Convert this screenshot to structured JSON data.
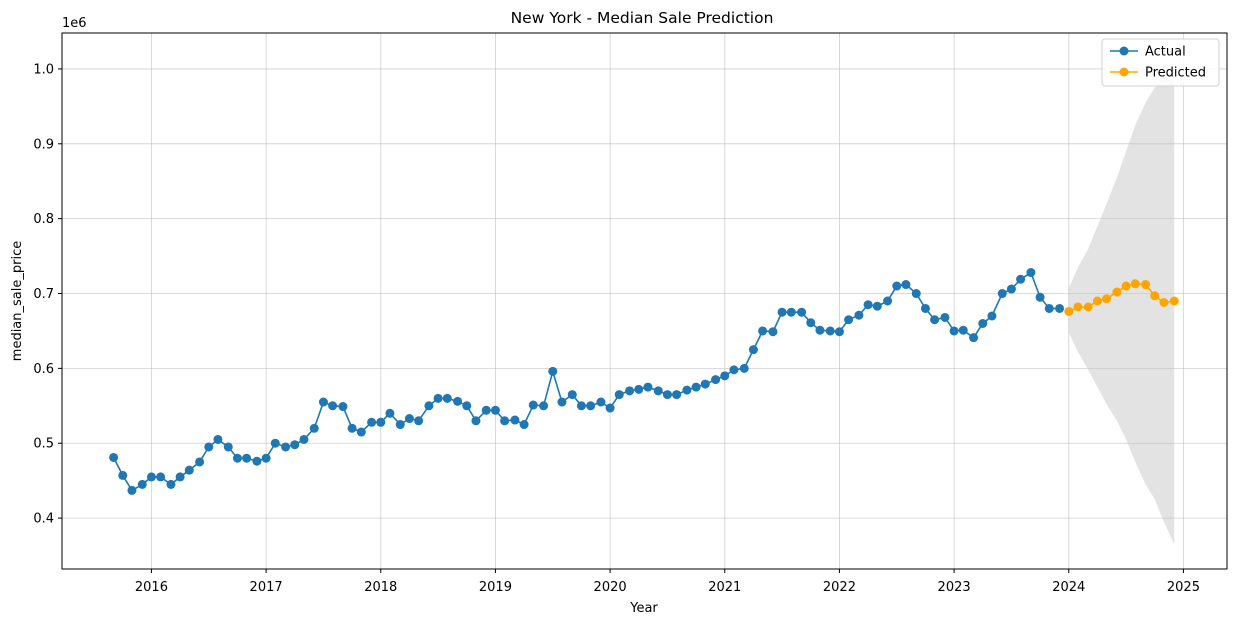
{
  "chart_data": {
    "type": "line",
    "title": "New York - Median Sale Prediction",
    "xlabel": "Year",
    "ylabel": "median_sale_price",
    "y_offset_label": "1e6",
    "xlim": [
      2015.22,
      2025.38
    ],
    "ylim": [
      0.332,
      1.048
    ],
    "x_ticks": [
      2016,
      2017,
      2018,
      2019,
      2020,
      2021,
      2022,
      2023,
      2024,
      2025
    ],
    "y_ticks": [
      0.4,
      0.5,
      0.6,
      0.7,
      0.8,
      0.9,
      1.0
    ],
    "y_tick_labels": [
      "0.4",
      "0.5",
      "0.6",
      "0.7",
      "0.8",
      "0.9",
      "1.0"
    ],
    "grid": true,
    "legend_position": "top-right",
    "series": [
      {
        "name": "Actual",
        "color": "#1f77b4",
        "marker": "circle",
        "points": [
          [
            2015.67,
            0.481
          ],
          [
            2015.75,
            0.457
          ],
          [
            2015.83,
            0.437
          ],
          [
            2015.92,
            0.445
          ],
          [
            2016.0,
            0.455
          ],
          [
            2016.08,
            0.455
          ],
          [
            2016.17,
            0.445
          ],
          [
            2016.25,
            0.455
          ],
          [
            2016.33,
            0.464
          ],
          [
            2016.42,
            0.475
          ],
          [
            2016.5,
            0.495
          ],
          [
            2016.58,
            0.505
          ],
          [
            2016.67,
            0.495
          ],
          [
            2016.75,
            0.48
          ],
          [
            2016.83,
            0.48
          ],
          [
            2016.92,
            0.476
          ],
          [
            2017.0,
            0.48
          ],
          [
            2017.08,
            0.5
          ],
          [
            2017.17,
            0.495
          ],
          [
            2017.25,
            0.498
          ],
          [
            2017.33,
            0.505
          ],
          [
            2017.42,
            0.52
          ],
          [
            2017.5,
            0.555
          ],
          [
            2017.58,
            0.55
          ],
          [
            2017.67,
            0.549
          ],
          [
            2017.75,
            0.52
          ],
          [
            2017.83,
            0.515
          ],
          [
            2017.92,
            0.528
          ],
          [
            2018.0,
            0.528
          ],
          [
            2018.08,
            0.54
          ],
          [
            2018.17,
            0.525
          ],
          [
            2018.25,
            0.533
          ],
          [
            2018.33,
            0.53
          ],
          [
            2018.42,
            0.55
          ],
          [
            2018.5,
            0.56
          ],
          [
            2018.58,
            0.56
          ],
          [
            2018.67,
            0.556
          ],
          [
            2018.75,
            0.55
          ],
          [
            2018.83,
            0.53
          ],
          [
            2018.92,
            0.544
          ],
          [
            2019.0,
            0.544
          ],
          [
            2019.08,
            0.53
          ],
          [
            2019.17,
            0.531
          ],
          [
            2019.25,
            0.525
          ],
          [
            2019.33,
            0.551
          ],
          [
            2019.42,
            0.55
          ],
          [
            2019.5,
            0.596
          ],
          [
            2019.58,
            0.555
          ],
          [
            2019.67,
            0.565
          ],
          [
            2019.75,
            0.55
          ],
          [
            2019.83,
            0.55
          ],
          [
            2019.92,
            0.555
          ],
          [
            2020.0,
            0.547
          ],
          [
            2020.08,
            0.565
          ],
          [
            2020.17,
            0.57
          ],
          [
            2020.25,
            0.572
          ],
          [
            2020.33,
            0.575
          ],
          [
            2020.42,
            0.57
          ],
          [
            2020.5,
            0.565
          ],
          [
            2020.58,
            0.565
          ],
          [
            2020.67,
            0.571
          ],
          [
            2020.75,
            0.575
          ],
          [
            2020.83,
            0.579
          ],
          [
            2020.92,
            0.585
          ],
          [
            2021.0,
            0.59
          ],
          [
            2021.08,
            0.598
          ],
          [
            2021.17,
            0.6
          ],
          [
            2021.25,
            0.625
          ],
          [
            2021.33,
            0.65
          ],
          [
            2021.42,
            0.649
          ],
          [
            2021.5,
            0.675
          ],
          [
            2021.58,
            0.675
          ],
          [
            2021.67,
            0.675
          ],
          [
            2021.75,
            0.661
          ],
          [
            2021.83,
            0.651
          ],
          [
            2021.92,
            0.65
          ],
          [
            2022.0,
            0.649
          ],
          [
            2022.08,
            0.665
          ],
          [
            2022.17,
            0.671
          ],
          [
            2022.25,
            0.685
          ],
          [
            2022.33,
            0.683
          ],
          [
            2022.42,
            0.69
          ],
          [
            2022.5,
            0.71
          ],
          [
            2022.58,
            0.712
          ],
          [
            2022.67,
            0.7
          ],
          [
            2022.75,
            0.68
          ],
          [
            2022.83,
            0.665
          ],
          [
            2022.92,
            0.668
          ],
          [
            2023.0,
            0.65
          ],
          [
            2023.08,
            0.651
          ],
          [
            2023.17,
            0.641
          ],
          [
            2023.25,
            0.66
          ],
          [
            2023.33,
            0.67
          ],
          [
            2023.42,
            0.7
          ],
          [
            2023.5,
            0.706
          ],
          [
            2023.58,
            0.719
          ],
          [
            2023.67,
            0.728
          ],
          [
            2023.75,
            0.695
          ],
          [
            2023.83,
            0.68
          ],
          [
            2023.92,
            0.68
          ]
        ]
      },
      {
        "name": "Predicted",
        "color": "#ffa500",
        "marker": "circle",
        "points": [
          [
            2024.0,
            0.676
          ],
          [
            2024.08,
            0.682
          ],
          [
            2024.17,
            0.682
          ],
          [
            2024.25,
            0.69
          ],
          [
            2024.33,
            0.693
          ],
          [
            2024.42,
            0.702
          ],
          [
            2024.5,
            0.71
          ],
          [
            2024.58,
            0.713
          ],
          [
            2024.67,
            0.712
          ],
          [
            2024.75,
            0.697
          ],
          [
            2024.83,
            0.688
          ],
          [
            2024.92,
            0.69
          ]
        ]
      }
    ],
    "confidence_band": {
      "color": "#c0c0c0",
      "x": [
        2024.0,
        2024.08,
        2024.17,
        2024.25,
        2024.33,
        2024.42,
        2024.5,
        2024.58,
        2024.67,
        2024.75,
        2024.83,
        2024.92
      ],
      "upper": [
        0.707,
        0.735,
        0.76,
        0.79,
        0.82,
        0.855,
        0.89,
        0.925,
        0.955,
        0.975,
        0.99,
        1.0
      ],
      "lower": [
        0.648,
        0.622,
        0.598,
        0.575,
        0.552,
        0.53,
        0.505,
        0.475,
        0.445,
        0.425,
        0.395,
        0.365
      ]
    }
  }
}
